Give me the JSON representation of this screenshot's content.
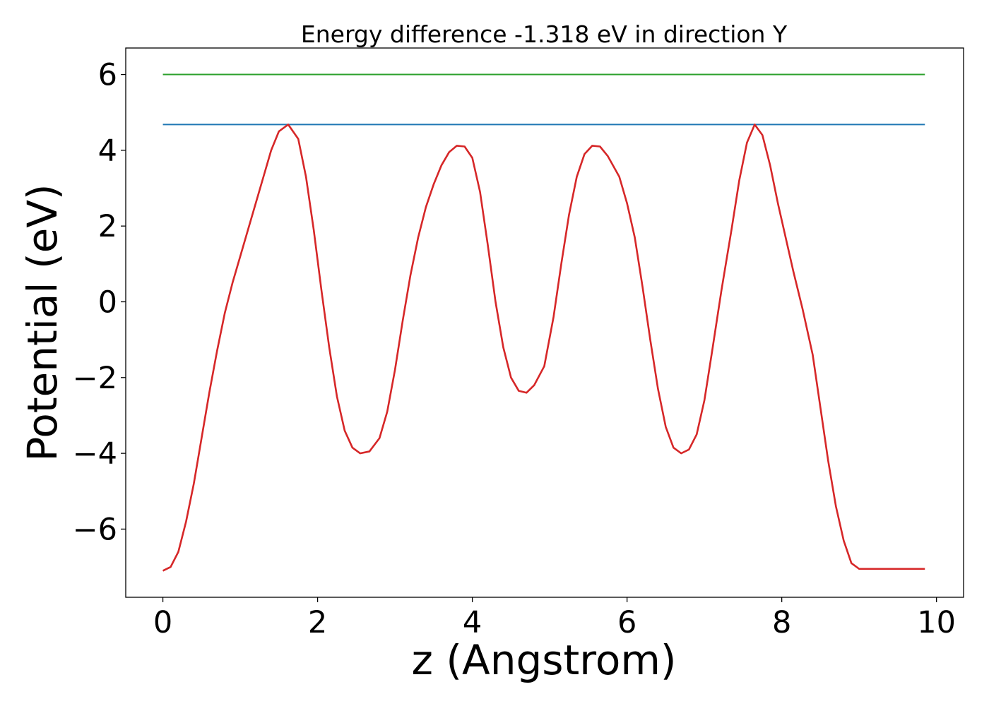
{
  "chart_data": {
    "type": "line",
    "title": "Energy difference -1.318 eV in direction Y",
    "xlabel": "z (Angstrom)",
    "ylabel": "Potential (eV)",
    "xlim": [
      -0.48,
      10.35
    ],
    "ylim": [
      -7.8,
      6.7
    ],
    "xticks": [
      0,
      2,
      4,
      6,
      8,
      10
    ],
    "xtick_labels": [
      "0",
      "2",
      "4",
      "6",
      "8",
      "10"
    ],
    "yticks": [
      -6,
      -4,
      -2,
      0,
      2,
      4,
      6
    ],
    "ytick_labels": [
      "−6",
      "−4",
      "−2",
      "0",
      "2",
      "4",
      "6"
    ],
    "grid": false,
    "series": [
      {
        "color": "#2ca02c",
        "x": [
          0,
          9.85
        ],
        "y": [
          6.0,
          6.0
        ]
      },
      {
        "color": "#1f77b4",
        "x": [
          0,
          9.85
        ],
        "y": [
          4.68,
          4.68
        ]
      },
      {
        "color": "#d62728",
        "x": [
          0.0,
          0.1,
          0.2,
          0.3,
          0.4,
          0.5,
          0.6,
          0.7,
          0.8,
          0.9,
          1.0,
          1.1,
          1.2,
          1.3,
          1.4,
          1.5,
          1.62,
          1.75,
          1.85,
          1.95,
          2.05,
          2.15,
          2.25,
          2.35,
          2.45,
          2.55,
          2.67,
          2.8,
          2.9,
          3.0,
          3.1,
          3.2,
          3.3,
          3.4,
          3.5,
          3.6,
          3.7,
          3.8,
          3.9,
          4.0,
          4.1,
          4.2,
          4.3,
          4.4,
          4.5,
          4.6,
          4.7,
          4.8,
          4.93,
          5.05,
          5.15,
          5.25,
          5.35,
          5.45,
          5.55,
          5.65,
          5.75,
          5.9,
          6.0,
          6.1,
          6.2,
          6.3,
          6.4,
          6.5,
          6.6,
          6.7,
          6.8,
          6.9,
          7.0,
          7.1,
          7.22,
          7.35,
          7.45,
          7.55,
          7.65,
          7.75,
          7.85,
          7.95,
          8.05,
          8.15,
          8.27,
          8.4,
          8.5,
          8.6,
          8.7,
          8.8,
          8.9,
          9.0,
          9.1,
          9.2,
          9.3,
          9.4,
          9.5,
          9.6,
          9.7,
          9.8,
          9.85
        ],
        "y": [
          -7.1,
          -7.0,
          -6.6,
          -5.8,
          -4.8,
          -3.6,
          -2.4,
          -1.3,
          -0.3,
          0.5,
          1.2,
          1.9,
          2.6,
          3.3,
          4.0,
          4.5,
          4.68,
          4.3,
          3.3,
          1.9,
          0.3,
          -1.2,
          -2.5,
          -3.4,
          -3.85,
          -4.0,
          -3.95,
          -3.6,
          -2.9,
          -1.8,
          -0.5,
          0.7,
          1.7,
          2.5,
          3.1,
          3.6,
          3.95,
          4.12,
          4.1,
          3.8,
          2.9,
          1.5,
          0.0,
          -1.2,
          -2.0,
          -2.35,
          -2.4,
          -2.2,
          -1.7,
          -0.4,
          1.0,
          2.3,
          3.3,
          3.9,
          4.12,
          4.1,
          3.85,
          3.3,
          2.6,
          1.7,
          0.4,
          -1.0,
          -2.3,
          -3.3,
          -3.85,
          -4.0,
          -3.9,
          -3.5,
          -2.6,
          -1.3,
          0.3,
          1.9,
          3.2,
          4.2,
          4.68,
          4.4,
          3.6,
          2.6,
          1.7,
          0.8,
          -0.2,
          -1.4,
          -2.8,
          -4.2,
          -5.4,
          -6.3,
          -6.9,
          -7.05,
          -7.05,
          -7.05,
          -7.05,
          -7.05,
          -7.05,
          -7.05,
          -7.05,
          -7.05,
          -7.05
        ]
      }
    ]
  }
}
